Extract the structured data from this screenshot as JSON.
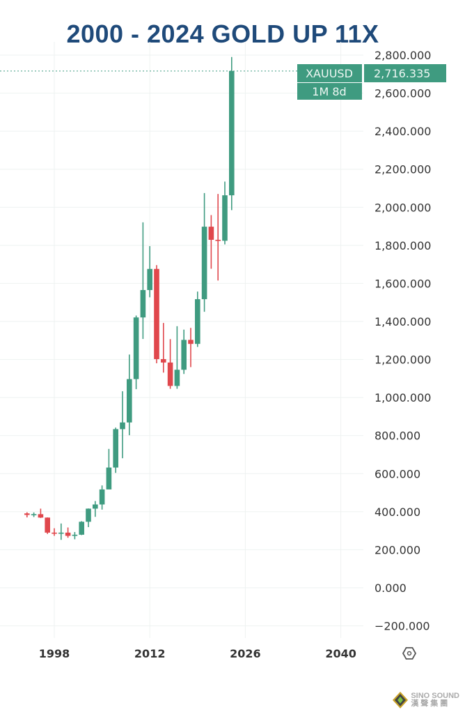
{
  "chart_data": {
    "type": "candlestick",
    "title": "2000 - 2024 GOLD UP 11X",
    "symbol": "XAUUSD",
    "last_price": "2,716.335",
    "countdown": "1M 8d",
    "interval": "yearly",
    "y_ticks": [
      "2,800.000",
      "2,600.000",
      "2,400.000",
      "2,200.000",
      "2,000.000",
      "1,800.000",
      "1,600.000",
      "1,400.000",
      "1,200.000",
      "1,000.000",
      "800.000",
      "600.000",
      "400.000",
      "200.000",
      "0.000",
      "−200.000"
    ],
    "y_tick_values": [
      2800,
      2600,
      2400,
      2200,
      2000,
      1800,
      1600,
      1400,
      1200,
      1000,
      800,
      600,
      400,
      200,
      0,
      -200
    ],
    "x_ticks": [
      "1998",
      "2012",
      "2026",
      "2040"
    ],
    "x_tick_values": [
      1998,
      2012,
      2026,
      2040
    ],
    "ylim": [
      -250,
      2850
    ],
    "xlim": [
      1990,
      2043
    ],
    "grid": true,
    "colors": {
      "up": "#3f9b80",
      "down": "#e0474c",
      "title": "#1f4a7a",
      "grid": "#eef2f1"
    },
    "candles": [
      {
        "year": 1994,
        "o": 391,
        "h": 397,
        "l": 370,
        "c": 383
      },
      {
        "year": 1995,
        "o": 383,
        "h": 396,
        "l": 372,
        "c": 387
      },
      {
        "year": 1996,
        "o": 387,
        "h": 416,
        "l": 367,
        "c": 369
      },
      {
        "year": 1997,
        "o": 369,
        "h": 370,
        "l": 283,
        "c": 290
      },
      {
        "year": 1998,
        "o": 290,
        "h": 313,
        "l": 273,
        "c": 288
      },
      {
        "year": 1999,
        "o": 288,
        "h": 338,
        "l": 252,
        "c": 290
      },
      {
        "year": 2000,
        "o": 290,
        "h": 317,
        "l": 263,
        "c": 273
      },
      {
        "year": 2001,
        "o": 273,
        "h": 293,
        "l": 255,
        "c": 279
      },
      {
        "year": 2002,
        "o": 279,
        "h": 350,
        "l": 277,
        "c": 347
      },
      {
        "year": 2003,
        "o": 347,
        "h": 417,
        "l": 319,
        "c": 416
      },
      {
        "year": 2004,
        "o": 416,
        "h": 456,
        "l": 373,
        "c": 438
      },
      {
        "year": 2005,
        "o": 438,
        "h": 538,
        "l": 411,
        "c": 517
      },
      {
        "year": 2006,
        "o": 517,
        "h": 730,
        "l": 520,
        "c": 632
      },
      {
        "year": 2007,
        "o": 632,
        "h": 842,
        "l": 604,
        "c": 834
      },
      {
        "year": 2008,
        "o": 834,
        "h": 1033,
        "l": 681,
        "c": 869
      },
      {
        "year": 2009,
        "o": 869,
        "h": 1226,
        "l": 802,
        "c": 1097
      },
      {
        "year": 2010,
        "o": 1097,
        "h": 1431,
        "l": 1044,
        "c": 1421
      },
      {
        "year": 2011,
        "o": 1421,
        "h": 1921,
        "l": 1308,
        "c": 1565
      },
      {
        "year": 2012,
        "o": 1565,
        "h": 1796,
        "l": 1527,
        "c": 1676
      },
      {
        "year": 2013,
        "o": 1676,
        "h": 1696,
        "l": 1180,
        "c": 1202
      },
      {
        "year": 2014,
        "o": 1202,
        "h": 1392,
        "l": 1131,
        "c": 1184
      },
      {
        "year": 2015,
        "o": 1184,
        "h": 1307,
        "l": 1046,
        "c": 1061
      },
      {
        "year": 2016,
        "o": 1061,
        "h": 1375,
        "l": 1046,
        "c": 1146
      },
      {
        "year": 2017,
        "o": 1146,
        "h": 1357,
        "l": 1124,
        "c": 1303
      },
      {
        "year": 2018,
        "o": 1303,
        "h": 1366,
        "l": 1160,
        "c": 1282
      },
      {
        "year": 2019,
        "o": 1282,
        "h": 1557,
        "l": 1266,
        "c": 1517
      },
      {
        "year": 2020,
        "o": 1517,
        "h": 2075,
        "l": 1451,
        "c": 1898
      },
      {
        "year": 2021,
        "o": 1898,
        "h": 1959,
        "l": 1677,
        "c": 1829
      },
      {
        "year": 2022,
        "o": 1829,
        "h": 2070,
        "l": 1615,
        "c": 1824
      },
      {
        "year": 2023,
        "o": 1824,
        "h": 2135,
        "l": 1805,
        "c": 2063
      },
      {
        "year": 2024,
        "o": 2063,
        "h": 2790,
        "l": 1985,
        "c": 2716.335
      }
    ]
  },
  "settings_icon": "hexagon-settings-icon",
  "logo": {
    "name": "SINO SOUND",
    "subtitle": "漢聲集團"
  }
}
